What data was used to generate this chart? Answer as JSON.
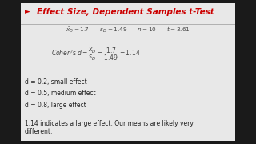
{
  "title": "Effect Size, Dependent Samples t-Test",
  "title_color": "#cc0000",
  "title_fontsize": 7.5,
  "bg_color": "#1a1a1a",
  "content_bg": "#e8e8e8",
  "stats_line": "$\\bar{x}_D = 1.7 \\quad\\quad s_D = 1.49 \\quad\\quad n = 10 \\quad\\quad t = 3.61$",
  "cohens_formula": "$Cohen\\mathrm{'s}\\; d = \\dfrac{\\bar{x}_D}{s_D} = \\dfrac{1.7}{1.49} = 1.14$",
  "bullet1": "d = 0.2, small effect",
  "bullet2": "d = 0.5, medium effect",
  "bullet3": "d = 0.8, large effect",
  "conclusion": "1.14 indicates a large effect. Our means are likely very\ndifferent.",
  "text_color": "#222222",
  "stats_color": "#444444",
  "formula_color": "#444444",
  "line_color": "#999999",
  "arrow_color": "#cc0000"
}
